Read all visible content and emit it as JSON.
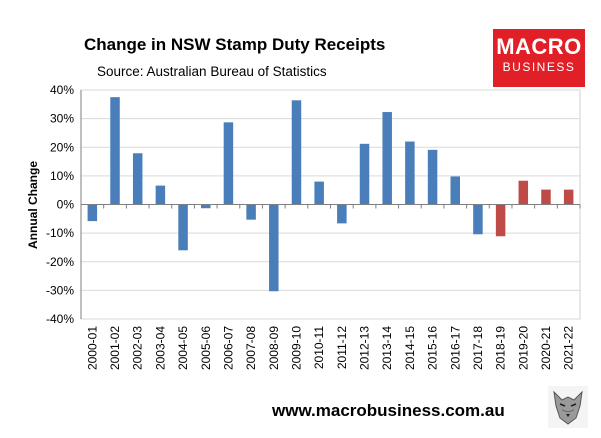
{
  "header": {
    "title": "Change in NSW Stamp Duty Receipts",
    "subtitle": "Source: Australian Bureau of Statistics"
  },
  "logo": {
    "line1": "MACRO",
    "line2": "BUSINESS",
    "color": "#e01f26"
  },
  "footer": {
    "url": "www.macrobusiness.com.au",
    "mascot_icon": "wolf-mascot-icon"
  },
  "chart_data": {
    "type": "bar",
    "title": "Change in NSW Stamp Duty Receipts",
    "ylabel": "Annual Change",
    "xlabel": "",
    "ylim": [
      -40,
      40
    ],
    "y_ticks": [
      "40%",
      "30%",
      "20%",
      "10%",
      "0%",
      "-10%",
      "-20%",
      "-30%",
      "-40%"
    ],
    "grid": true,
    "legend": "none",
    "categories": [
      "2000-01",
      "2001-02",
      "2002-03",
      "2003-04",
      "2004-05",
      "2005-06",
      "2006-07",
      "2007-08",
      "2008-09",
      "2009-10",
      "2010-11",
      "2011-12",
      "2012-13",
      "2013-14",
      "2014-15",
      "2015-16",
      "2016-17",
      "2017-18",
      "2018-19",
      "2019-20",
      "2020-21",
      "2021-22"
    ],
    "values": [
      -5.8,
      37.5,
      17.9,
      6.6,
      -16.0,
      -1.3,
      28.7,
      -5.3,
      -30.3,
      36.4,
      8.0,
      -6.6,
      21.2,
      32.3,
      22.0,
      19.1,
      9.8,
      -10.4,
      -11.1,
      8.3,
      5.2,
      5.2
    ],
    "bar_colors": [
      "#4a7ebb",
      "#4a7ebb",
      "#4a7ebb",
      "#4a7ebb",
      "#4a7ebb",
      "#4a7ebb",
      "#4a7ebb",
      "#4a7ebb",
      "#4a7ebb",
      "#4a7ebb",
      "#4a7ebb",
      "#4a7ebb",
      "#4a7ebb",
      "#4a7ebb",
      "#4a7ebb",
      "#4a7ebb",
      "#4a7ebb",
      "#4a7ebb",
      "#be4b48",
      "#be4b48",
      "#be4b48",
      "#be4b48"
    ]
  }
}
